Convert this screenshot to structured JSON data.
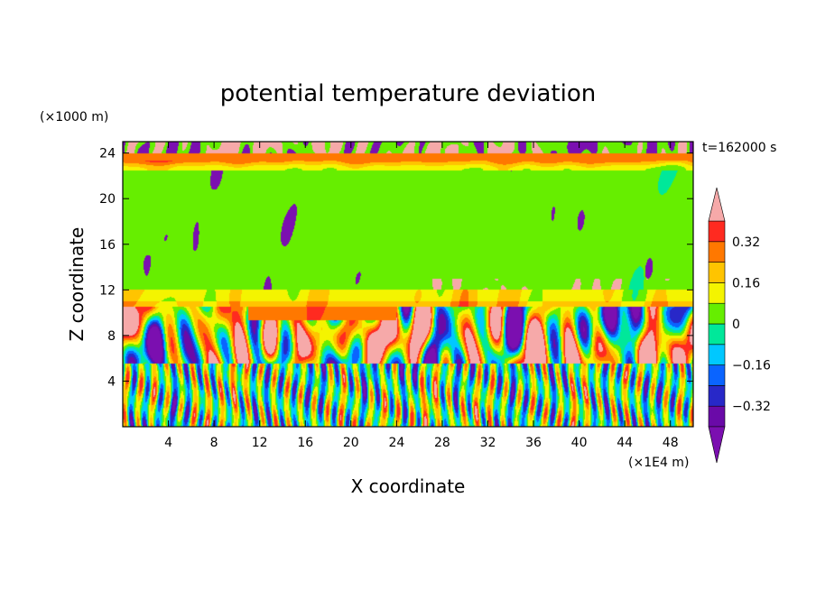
{
  "chart_data": {
    "type": "heatmap",
    "title": "potential temperature deviation",
    "xlabel": "X coordinate",
    "ylabel": "Z coordinate",
    "x_unit": "(×1E4 m)",
    "y_unit": "(×1000 m)",
    "time_label": "t=162000 s",
    "xlim": [
      0,
      50
    ],
    "ylim": [
      0,
      25
    ],
    "x_ticks": [
      4,
      8,
      12,
      16,
      20,
      24,
      28,
      32,
      36,
      40,
      44,
      48
    ],
    "y_ticks": [
      4,
      8,
      12,
      16,
      20,
      24
    ],
    "grid": false,
    "colorbar": {
      "placement": "right",
      "levels": [
        -0.4,
        -0.32,
        -0.24,
        -0.16,
        -0.08,
        0,
        0.08,
        0.16,
        0.24,
        0.32,
        0.4
      ],
      "tick_labels": [
        "0.32",
        "0.16",
        "0",
        "−0.16",
        "−0.32"
      ],
      "tick_values": [
        0.32,
        0.16,
        0,
        -0.16,
        -0.32
      ],
      "colors": [
        "#6a0aa8",
        "#2828c8",
        "#0a64ff",
        "#00c8ff",
        "#00e89a",
        "#66ee00",
        "#f4f400",
        "#ffc400",
        "#ff7800",
        "#ff2a20",
        "#f6a9a9",
        "#7b0fb0"
      ],
      "over_color": "#f6a9a9",
      "under_color": "#7b0fb0"
    },
    "field_description_bands": [
      {
        "z": [
          0,
          5.5
        ],
        "values": "strongly oscillating, alternating -0.4 to +0.35 vertical streaks"
      },
      {
        "z": [
          5.5,
          10.5
        ],
        "values": "mixed: > 0.4 patches and < -0.4 patches"
      },
      {
        "z": [
          9.5,
          10.5
        ],
        "x": [
          11,
          24
        ],
        "values": "0.24 to 0.32"
      },
      {
        "z": [
          10.5,
          12
        ],
        "values": "0.08 to 0.24"
      },
      {
        "z": [
          12,
          22.5
        ],
        "values": "mostly 0 to 0.08 with scattered -0.4 patches"
      },
      {
        "z": [
          22.5,
          24
        ],
        "values": "0.16 to 0.32"
      },
      {
        "z": [
          24,
          25
        ],
        "values": "mixed > 0.4 and < -0.4"
      }
    ]
  }
}
